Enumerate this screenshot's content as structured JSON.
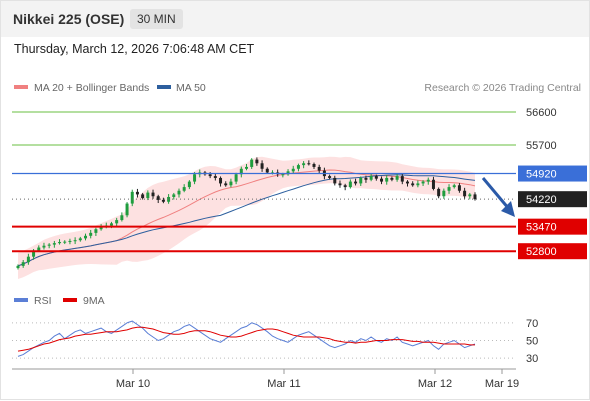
{
  "header": {
    "title": "Nikkei 225 (OSE)",
    "timeframe": "30 MIN",
    "datetime": "Thursday, March 12, 2026 7:06:48 AM CET"
  },
  "legend": {
    "items": [
      {
        "label": "MA 20 + Bollinger Bands",
        "color": "#f08080"
      },
      {
        "label": "MA 50",
        "color": "#2d5f9e"
      }
    ],
    "credit": "Research © 2026 Trading Central"
  },
  "rsi_legend": {
    "items": [
      {
        "label": "RSI",
        "color": "#5b7fd6"
      },
      {
        "label": "9MA",
        "color": "#e00000"
      }
    ]
  },
  "chart_data": [
    {
      "type": "candlestick",
      "title": "Nikkei 225 (OSE)",
      "interval": "30 MIN",
      "x_ticks": [
        "Mar 10",
        "Mar 11",
        "Mar 12",
        "Mar 19"
      ],
      "y_range": [
        51850,
        56900
      ],
      "series": [
        {
          "name": "price",
          "ohlc_close": [
            52400,
            52500,
            52650,
            52820,
            52900,
            52950,
            52980,
            53020,
            53050,
            53060,
            53080,
            53100,
            53150,
            53220,
            53300,
            53400,
            53480,
            53500,
            53560,
            53650,
            53780,
            54100,
            54420,
            54350,
            54250,
            54400,
            54300,
            54200,
            54150,
            54280,
            54350,
            54450,
            54550,
            54700,
            54900,
            54950,
            54900,
            54850,
            54800,
            54650,
            54600,
            54700,
            54900,
            55050,
            55100,
            55300,
            55200,
            55050,
            54950,
            54950,
            54900,
            54900,
            54980,
            55050,
            55150,
            55200,
            55180,
            55100,
            55000,
            54850,
            54800,
            54650,
            54600,
            54550,
            54700,
            54650,
            54800,
            54750,
            54850,
            54780,
            54700,
            54800,
            54750,
            54850,
            54700,
            54650,
            54600,
            54650,
            54700,
            54750,
            54500,
            54300,
            54450,
            54550,
            54600,
            54450,
            54300,
            54350,
            54220
          ]
        },
        {
          "name": "MA 20 + Bollinger Bands"
        },
        {
          "name": "MA 50"
        }
      ],
      "levels": [
        {
          "value": 56600,
          "kind": "target",
          "color": "#6abf40",
          "label": "56600"
        },
        {
          "value": 55700,
          "kind": "target",
          "color": "#6abf40",
          "label": "55700"
        },
        {
          "value": 54920,
          "kind": "pivot",
          "color": "#3a6fd8",
          "label": "54920"
        },
        {
          "value": 54220,
          "kind": "last",
          "color": "#222222",
          "label": "54220"
        },
        {
          "value": 53470,
          "kind": "support",
          "color": "#e00000",
          "label": "53470"
        },
        {
          "value": 52800,
          "kind": "support",
          "color": "#e00000",
          "label": "52800"
        }
      ]
    },
    {
      "type": "line",
      "title": "RSI",
      "y_ticks": [
        70,
        50,
        30
      ],
      "series": [
        {
          "name": "RSI",
          "values": [
            32,
            34,
            38,
            42,
            45,
            48,
            50,
            55,
            58,
            52,
            56,
            60,
            62,
            58,
            60,
            62,
            64,
            60,
            58,
            62,
            66,
            70,
            72,
            68,
            64,
            58,
            54,
            50,
            52,
            56,
            60,
            62,
            66,
            68,
            64,
            60,
            56,
            52,
            50,
            48,
            52,
            56,
            60,
            64,
            66,
            70,
            68,
            64,
            60,
            55,
            52,
            50,
            48,
            52,
            56,
            58,
            60,
            56,
            52,
            48,
            44,
            42,
            44,
            46,
            50,
            48,
            52,
            50,
            54,
            50,
            48,
            52,
            50,
            54,
            48,
            46,
            44,
            46,
            48,
            50,
            44,
            40,
            46,
            48,
            50,
            46,
            42,
            44,
            46
          ]
        },
        {
          "name": "9MA",
          "values": [
            38,
            39,
            40,
            42,
            44,
            46,
            47,
            49,
            51,
            52,
            53,
            55,
            56,
            57,
            57,
            58,
            59,
            60,
            60,
            60,
            61,
            62,
            64,
            65,
            65,
            64,
            63,
            61,
            59,
            58,
            57,
            57,
            58,
            60,
            61,
            61,
            61,
            60,
            58,
            56,
            55,
            54,
            54,
            55,
            57,
            59,
            61,
            62,
            63,
            63,
            62,
            60,
            58,
            56,
            55,
            54,
            54,
            54,
            54,
            53,
            52,
            50,
            49,
            48,
            48,
            47,
            48,
            48,
            49,
            50,
            50,
            50,
            51,
            51,
            51,
            50,
            49,
            49,
            48,
            48,
            48,
            47,
            46,
            46,
            46,
            46,
            46,
            45,
            45
          ]
        }
      ]
    }
  ]
}
